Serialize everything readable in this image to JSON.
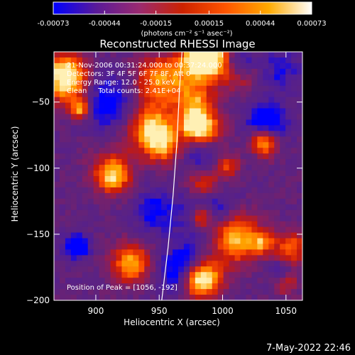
{
  "chart_data": {
    "type": "heatmap",
    "title": "Reconstructed RHESSI Image",
    "colorbar": {
      "ticks": [
        "-0.00073",
        "-0.00044",
        "-0.00015",
        "0.00015",
        "0.00044",
        "0.00073"
      ],
      "units_label": "(photons cm⁻² s⁻¹ asec⁻²)",
      "range": [
        -0.00073,
        0.00073
      ],
      "colors": [
        "#0000ff",
        "#5a1a99",
        "#9a2a70",
        "#cc2200",
        "#ff5500",
        "#ffaa00",
        "#ffffff"
      ]
    },
    "annotations": [
      "21-Nov-2006 00:31:24.000 to 00:37:24.000",
      "Detectors: 3F 4F 5F 6F 7F 8F, Att 0",
      "Energy Range: 12.0 - 25.0 keV",
      "Clean     Total counts: 2.41E+04",
      "Position of Peak = [1056, -192]"
    ],
    "xlabel": "Heliocentric X (arcsec)",
    "ylabel": "Heliocentric Y (arcsec)",
    "xlim": [
      867,
      1063
    ],
    "ylim": [
      -200,
      -12
    ],
    "x_ticks": [
      900,
      950,
      1000,
      1050
    ],
    "y_ticks": [
      -50,
      -100,
      -150,
      -200
    ],
    "limb_line": [
      [
        952,
        -200
      ],
      [
        957,
        -160
      ],
      [
        961,
        -120
      ],
      [
        964,
        -80
      ],
      [
        966,
        -40
      ],
      [
        968,
        -12
      ]
    ],
    "grid": false
  },
  "footer": {
    "date": "7-May-2022 22:46"
  }
}
